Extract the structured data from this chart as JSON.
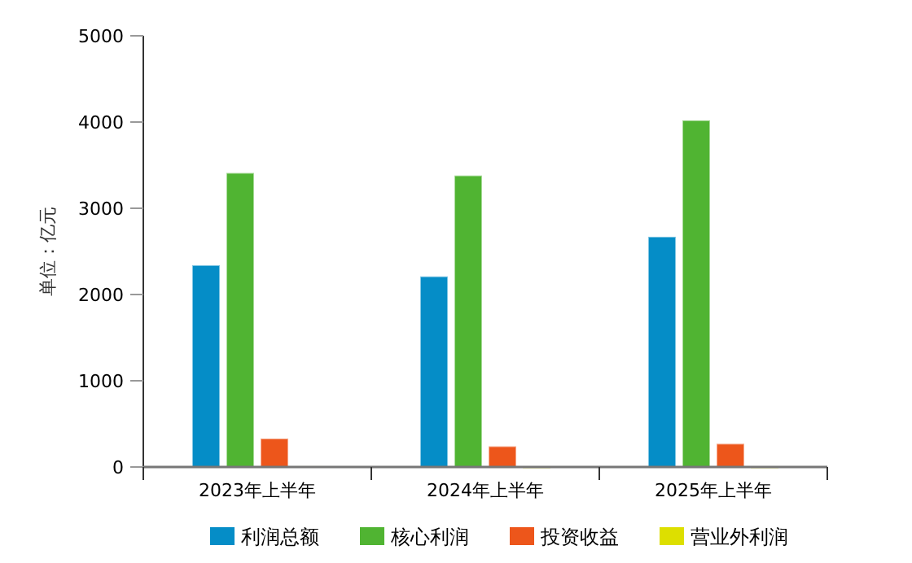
{
  "chart_data": {
    "type": "bar",
    "ylabel": "单位：亿元",
    "categories": [
      "2023年上半年",
      "2024年上半年",
      "2025年上半年"
    ],
    "series": [
      {
        "name": "利润总额",
        "color": "#058dc7",
        "values": [
          2340,
          2210,
          2670
        ]
      },
      {
        "name": "核心利润",
        "color": "#50b432",
        "values": [
          3410,
          3380,
          4020
        ]
      },
      {
        "name": "投资收益",
        "color": "#ed561b",
        "values": [
          330,
          240,
          270
        ]
      },
      {
        "name": "营业外利润",
        "color": "#dddf00",
        "values": [
          10,
          0,
          0
        ]
      }
    ],
    "ylim": [
      0,
      5000
    ],
    "yticks": [
      0,
      1000,
      2000,
      3000,
      4000,
      5000
    ],
    "legend": "bottom"
  }
}
